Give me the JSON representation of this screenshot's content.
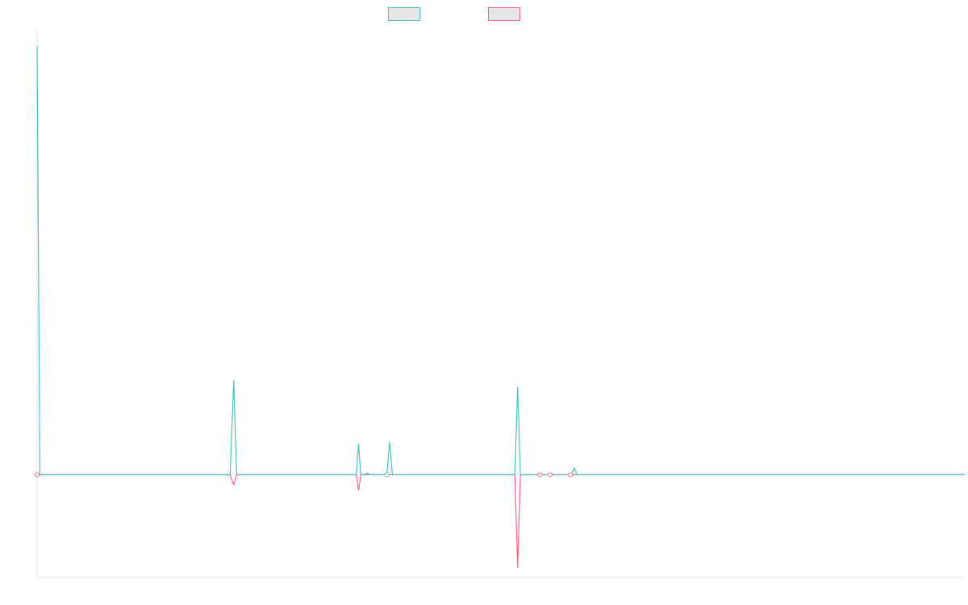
{
  "chart_data": {
    "type": "line",
    "title": "",
    "xlabel": "",
    "ylabel": "",
    "grid": false,
    "legend_position": "top",
    "x_domain": [
      0,
      1000
    ],
    "ylim": [
      -6,
      26
    ],
    "series": [
      {
        "color": "#4bc0c0",
        "fill": "#e6e6e6",
        "points": [
          [
            0,
            25
          ],
          [
            3,
            0
          ],
          [
            208,
            0
          ],
          [
            212,
            5.5
          ],
          [
            215,
            0
          ],
          [
            344,
            0
          ],
          [
            346.5,
            1.8
          ],
          [
            349,
            0
          ],
          [
            353,
            0
          ],
          [
            356,
            0.1
          ],
          [
            359,
            0
          ],
          [
            377,
            0
          ],
          [
            380,
            1.9
          ],
          [
            383,
            0
          ],
          [
            515,
            0
          ],
          [
            518,
            5.1
          ],
          [
            521,
            0
          ],
          [
            576,
            0
          ],
          [
            579,
            0.4
          ],
          [
            582,
            0
          ],
          [
            1000,
            0
          ]
        ]
      },
      {
        "color": "#ff6384",
        "fill": "#e6e6e6",
        "points": [
          [
            0,
            0
          ],
          [
            3,
            0
          ],
          [
            208,
            0
          ],
          [
            212,
            -0.6
          ],
          [
            215,
            0
          ],
          [
            344,
            0
          ],
          [
            346.5,
            -0.9
          ],
          [
            349,
            0
          ],
          [
            515,
            0
          ],
          [
            518,
            -5.4
          ],
          [
            521,
            0
          ],
          [
            1000,
            0
          ]
        ]
      }
    ],
    "markers": [
      {
        "x": 0,
        "y": 0,
        "series": 1
      },
      {
        "x": 377,
        "y": 0,
        "series": 0
      },
      {
        "x": 542,
        "y": 0,
        "series": 1
      },
      {
        "x": 553,
        "y": 0,
        "series": 1
      },
      {
        "x": 575,
        "y": 0,
        "series": 1
      }
    ]
  }
}
